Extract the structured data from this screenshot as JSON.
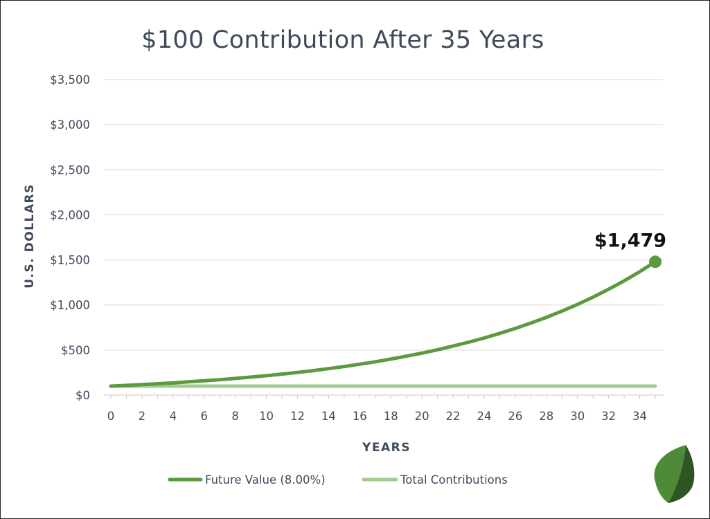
{
  "chart_data": {
    "type": "line",
    "title": "$100 Contribution After 35 Years",
    "xlabel": "YEARS",
    "ylabel": "U.S. DOLLARS",
    "x": [
      0,
      1,
      2,
      3,
      4,
      5,
      6,
      7,
      8,
      9,
      10,
      11,
      12,
      13,
      14,
      15,
      16,
      17,
      18,
      19,
      20,
      21,
      22,
      23,
      24,
      25,
      26,
      27,
      28,
      29,
      30,
      31,
      32,
      33,
      34,
      35
    ],
    "x_ticks": [
      0,
      2,
      4,
      6,
      8,
      10,
      12,
      14,
      16,
      18,
      20,
      22,
      24,
      26,
      28,
      30,
      32,
      34
    ],
    "xlim": [
      0,
      35
    ],
    "ylim": [
      0,
      3500
    ],
    "y_ticks": [
      0,
      500,
      1000,
      1500,
      2000,
      2500,
      3000,
      3500
    ],
    "y_tick_labels": [
      "$0",
      "$500",
      "$1,000",
      "$1,500",
      "$2,000",
      "$2,500",
      "$3,000",
      "$3,500"
    ],
    "grid": true,
    "legend": "bottom",
    "series": [
      {
        "name": "Future Value (8.00%)",
        "color": "#5b9a3f",
        "values": [
          100,
          108,
          117,
          126,
          136,
          147,
          159,
          171,
          185,
          200,
          216,
          233,
          252,
          272,
          294,
          317,
          343,
          370,
          400,
          432,
          466,
          503,
          544,
          587,
          634,
          685,
          740,
          799,
          863,
          932,
          1006,
          1087,
          1174,
          1268,
          1369,
          1479
        ]
      },
      {
        "name": "Total Contributions",
        "color": "#a2cd8e",
        "values": [
          100,
          100,
          100,
          100,
          100,
          100,
          100,
          100,
          100,
          100,
          100,
          100,
          100,
          100,
          100,
          100,
          100,
          100,
          100,
          100,
          100,
          100,
          100,
          100,
          100,
          100,
          100,
          100,
          100,
          100,
          100,
          100,
          100,
          100,
          100,
          100
        ]
      }
    ],
    "annotation": {
      "text": "$1,479",
      "x": 35,
      "y": 1479
    }
  },
  "colors": {
    "title": "#3e4a5c",
    "axis_text": "#3e4a5c",
    "grid": "#d9d9d9",
    "leaf_light": "#4f8a38",
    "leaf_dark": "#2f5525"
  },
  "logo": {
    "icon": "leaf-icon"
  }
}
